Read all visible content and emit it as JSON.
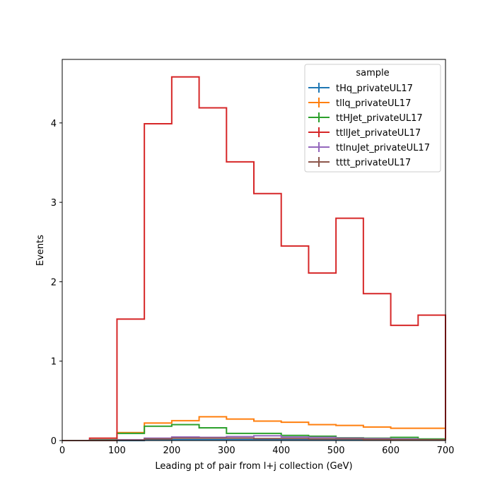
{
  "chart_data": {
    "type": "histogram",
    "xlabel": "Leading pt of pair from l+j collection (GeV)",
    "ylabel": "Events",
    "xlim": [
      0,
      700
    ],
    "ylim": [
      0,
      4.8
    ],
    "x_ticks": [
      0,
      100,
      200,
      300,
      400,
      500,
      600,
      700
    ],
    "y_ticks": [
      0,
      1,
      2,
      3,
      4
    ],
    "bin_edges": [
      0,
      50,
      100,
      150,
      200,
      250,
      300,
      350,
      400,
      450,
      500,
      550,
      600,
      650,
      700
    ],
    "legend": {
      "title": "sample",
      "position": "top-right"
    },
    "series": [
      {
        "name": "tHq_privateUL17",
        "color": "#1f77b4",
        "values": [
          0,
          0,
          0,
          0.005,
          0.01,
          0.01,
          0.01,
          0.01,
          0.01,
          0.01,
          0.01,
          0.01,
          0.005,
          0.005
        ]
      },
      {
        "name": "tllq_privateUL17",
        "color": "#ff7f0e",
        "values": [
          0,
          0.01,
          0.1,
          0.22,
          0.25,
          0.3,
          0.27,
          0.245,
          0.23,
          0.2,
          0.19,
          0.17,
          0.155,
          0.155
        ]
      },
      {
        "name": "ttHJet_privateUL17",
        "color": "#2ca02c",
        "values": [
          0,
          0.01,
          0.09,
          0.18,
          0.2,
          0.16,
          0.09,
          0.09,
          0.065,
          0.055,
          0.035,
          0.03,
          0.04,
          0.02
        ]
      },
      {
        "name": "ttllJet_privateUL17",
        "color": "#d62728",
        "values": [
          0,
          0.03,
          1.53,
          3.99,
          4.58,
          4.19,
          3.51,
          3.11,
          2.45,
          2.11,
          2.8,
          1.85,
          1.45,
          1.58
        ]
      },
      {
        "name": "ttlnuJet_privateUL17",
        "color": "#9467bd",
        "values": [
          0,
          0.005,
          0.01,
          0.03,
          0.045,
          0.04,
          0.05,
          0.06,
          0.045,
          0.04,
          0.03,
          0.025,
          0.02,
          0.01
        ]
      },
      {
        "name": "tttt_privateUL17",
        "color": "#8c564b",
        "values": [
          0,
          0,
          0.005,
          0.02,
          0.03,
          0.03,
          0.03,
          0.025,
          0.025,
          0.02,
          0.02,
          0.015,
          0.01,
          0.01
        ]
      }
    ]
  }
}
